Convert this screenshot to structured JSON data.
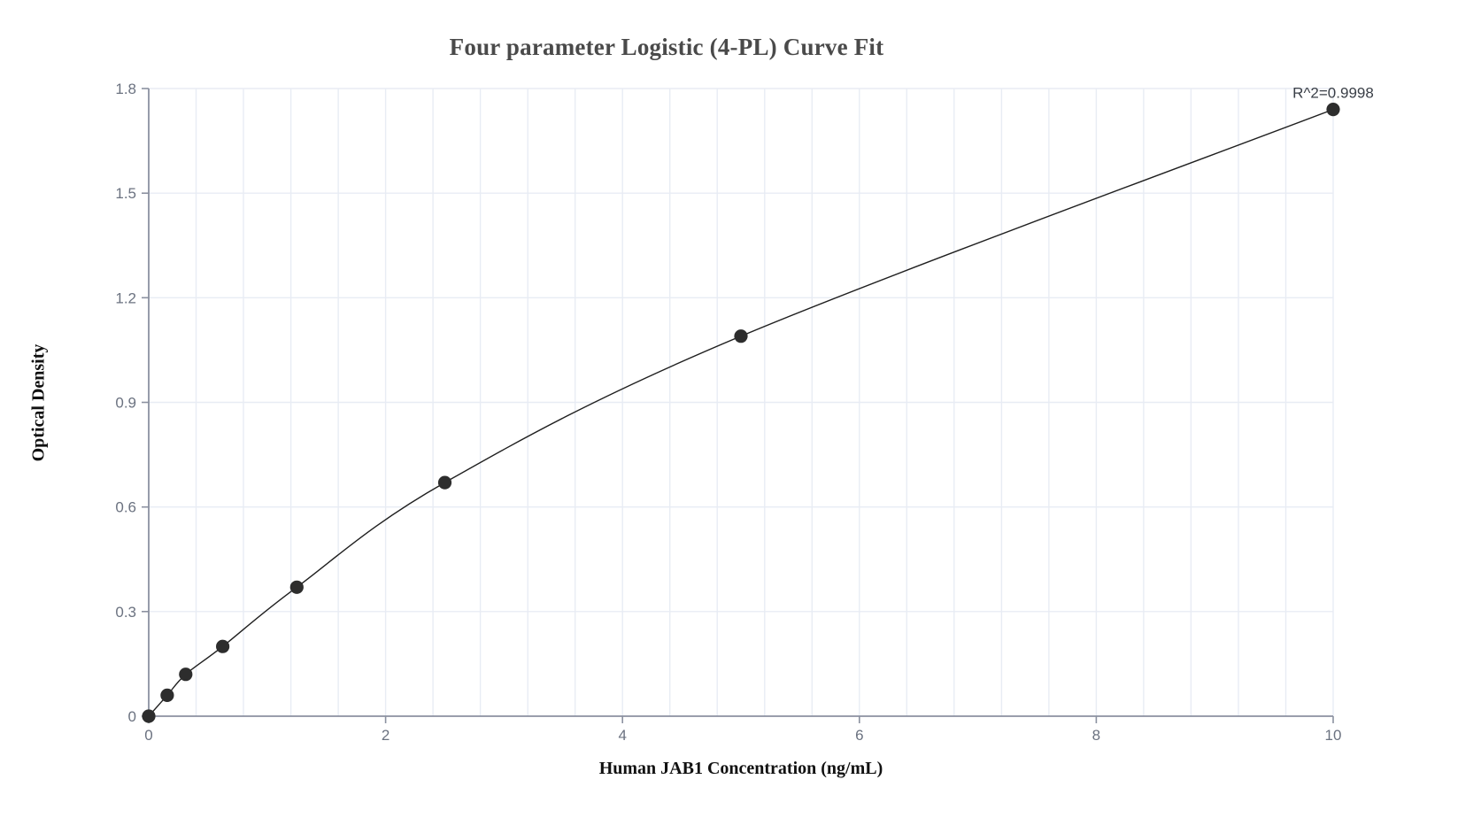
{
  "chart_data": {
    "type": "scatter",
    "title": "Four parameter Logistic (4-PL) Curve Fit",
    "xlabel": "Human JAB1 Concentration (ng/mL)",
    "ylabel": "Optical Density",
    "x": [
      0,
      0.156,
      0.3125,
      0.625,
      1.25,
      2.5,
      5,
      10
    ],
    "y": [
      0,
      0.06,
      0.12,
      0.2,
      0.37,
      0.67,
      1.09,
      1.74
    ],
    "xlim": [
      0,
      10
    ],
    "ylim": [
      0,
      1.8
    ],
    "x_ticks": [
      0,
      2,
      4,
      6,
      8,
      10
    ],
    "y_ticks": [
      0,
      0.3,
      0.6,
      0.9,
      1.2,
      1.5,
      1.8
    ],
    "x_minor_grid_step": 0.4,
    "grid": true,
    "legend_position": "none",
    "annotation": "R^2=0.9998",
    "annotation_anchor": {
      "x": 10,
      "y": 1.74
    },
    "fit": "smooth 4-PL curve through all data points",
    "colors": {
      "point": "#2d2d2d",
      "curve": "#1f1f1f",
      "grid": "#e8ecf4",
      "axis": "#8b91a0",
      "tick_label": "#6b7280",
      "title": "#4a4a4a",
      "axis_label": "#111111",
      "annotation": "#3a3f47",
      "background": "#ffffff"
    }
  }
}
